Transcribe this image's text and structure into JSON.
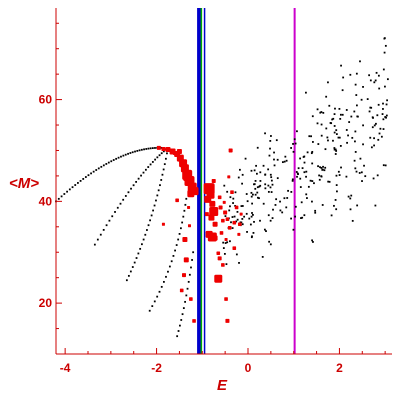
{
  "chart_data": {
    "type": "scatter",
    "title": "",
    "xlabel": "E",
    "ylabel": "<M>",
    "xlim": [
      -4.2,
      3.15
    ],
    "ylim": [
      10,
      78
    ],
    "xticks": [
      -4,
      -2,
      0,
      2
    ],
    "yticks": [
      20,
      40,
      60
    ],
    "grid": false,
    "colors": {
      "axis": "#cc0000",
      "black_points": "#000000",
      "red_points": "#ee0000",
      "blue_line": "#0000cc",
      "green_line": "#00aa00",
      "magenta_line": "#cc00cc"
    },
    "vertical_lines": [
      {
        "x": -1.07,
        "color": "#0000cc",
        "width": 4
      },
      {
        "x": -1.02,
        "color": "#00aa00",
        "width": 1.5
      },
      {
        "x": -0.95,
        "color": "#0000cc",
        "width": 1.5
      },
      {
        "x": 1.02,
        "color": "#cc00cc",
        "width": 2
      }
    ],
    "curves": [
      {
        "x0": -4.2,
        "y0": 40,
        "xp": -2.85,
        "yp": 51,
        "x1": -1.85,
        "y1": 50.5,
        "n": 45
      },
      {
        "x0": -3.35,
        "y0": 31.5,
        "xp": -2.4,
        "yp": 46,
        "x1": -1.75,
        "y1": 50.5,
        "n": 30
      },
      {
        "x0": -2.65,
        "y0": 24.5,
        "xp": -2.05,
        "yp": 36,
        "x1": -1.75,
        "y1": 50.5,
        "n": 28
      },
      {
        "x0": -2.15,
        "y0": 18.5,
        "xp": -1.55,
        "yp": 28,
        "x1": -1.35,
        "y1": 40.5,
        "n": 22
      },
      {
        "x0": -1.55,
        "y0": 13.5,
        "xp": -1.35,
        "yp": 20,
        "x1": -1.2,
        "y1": 30,
        "n": 14
      }
    ],
    "cloud": {
      "n": 330,
      "x_range": [
        -0.55,
        3.1
      ],
      "y_at_x_min": 36,
      "y_at_x_max": 58,
      "spread": 6
    },
    "red_points": [
      {
        "x": -1.95,
        "y": 50.5,
        "s": 2
      },
      {
        "x": -1.85,
        "y": 50.3,
        "s": 2
      },
      {
        "x": -1.75,
        "y": 50.2,
        "s": 2.5
      },
      {
        "x": -1.65,
        "y": 49.8,
        "s": 3
      },
      {
        "x": -1.55,
        "y": 49.3,
        "s": 3
      },
      {
        "x": -1.48,
        "y": 48.5,
        "s": 3.5
      },
      {
        "x": -1.42,
        "y": 47.5,
        "s": 4
      },
      {
        "x": -1.38,
        "y": 46.5,
        "s": 4
      },
      {
        "x": -1.33,
        "y": 45.2,
        "s": 5
      },
      {
        "x": -1.28,
        "y": 44,
        "s": 5
      },
      {
        "x": -1.22,
        "y": 42.8,
        "s": 4.5
      },
      {
        "x": -1.17,
        "y": 42,
        "s": 4
      },
      {
        "x": -1.3,
        "y": 45.6,
        "s": 3
      },
      {
        "x": -1.35,
        "y": 44.6,
        "s": 3
      },
      {
        "x": -1.25,
        "y": 41.5,
        "s": 3.5
      },
      {
        "x": -1.5,
        "y": 49.8,
        "s": 2.5
      },
      {
        "x": -1.6,
        "y": 49.5,
        "s": 2
      },
      {
        "x": -1.45,
        "y": 47.8,
        "s": 2.5
      },
      {
        "x": -0.85,
        "y": 42.5,
        "s": 5.5
      },
      {
        "x": -0.82,
        "y": 41.3,
        "s": 4
      },
      {
        "x": -0.88,
        "y": 40.4,
        "s": 3.5
      },
      {
        "x": -0.78,
        "y": 39.5,
        "s": 3
      },
      {
        "x": -0.75,
        "y": 38,
        "s": 4.5
      },
      {
        "x": -0.8,
        "y": 36.8,
        "s": 3
      },
      {
        "x": -0.72,
        "y": 35.5,
        "s": 2.5
      },
      {
        "x": -0.85,
        "y": 33.5,
        "s": 3.5
      },
      {
        "x": -0.78,
        "y": 33,
        "s": 4.5
      },
      {
        "x": -0.72,
        "y": 32.8,
        "s": 2.5
      },
      {
        "x": -0.9,
        "y": 37.5,
        "s": 2
      },
      {
        "x": -0.6,
        "y": 38.8,
        "s": 2
      },
      {
        "x": -0.5,
        "y": 37.8,
        "s": 2
      },
      {
        "x": -0.45,
        "y": 36.5,
        "s": 1.8
      },
      {
        "x": -0.4,
        "y": 34.8,
        "s": 1.8
      },
      {
        "x": -0.55,
        "y": 36.2,
        "s": 1.8
      },
      {
        "x": -0.3,
        "y": 35.8,
        "s": 1.8
      },
      {
        "x": -0.62,
        "y": 40.8,
        "s": 1.8
      },
      {
        "x": -0.35,
        "y": 41.8,
        "s": 1.8
      },
      {
        "x": -0.25,
        "y": 38.8,
        "s": 1.8
      },
      {
        "x": -0.18,
        "y": 35.5,
        "s": 1.8
      },
      {
        "x": -0.52,
        "y": 39.8,
        "s": 1.5
      },
      {
        "x": -0.42,
        "y": 44.8,
        "s": 1.5
      },
      {
        "x": -0.38,
        "y": 50,
        "s": 2
      },
      {
        "x": -0.3,
        "y": 30.8,
        "s": 1.8
      },
      {
        "x": -0.65,
        "y": 29.8,
        "s": 1.8
      },
      {
        "x": -0.58,
        "y": 33.8,
        "s": 1.8
      },
      {
        "x": -0.48,
        "y": 32.5,
        "s": 1.5
      },
      {
        "x": -0.55,
        "y": 27.5,
        "s": 1.8
      },
      {
        "x": -0.2,
        "y": 33.5,
        "s": 1.5
      },
      {
        "x": -0.15,
        "y": 37.5,
        "s": 1.5
      },
      {
        "x": -1.38,
        "y": 32.5,
        "s": 2.5
      },
      {
        "x": -1.35,
        "y": 28.5,
        "s": 2.5
      },
      {
        "x": -1.4,
        "y": 25.5,
        "s": 2
      },
      {
        "x": -1.45,
        "y": 22.5,
        "s": 1.8
      },
      {
        "x": -1.25,
        "y": 20.8,
        "s": 1.8
      },
      {
        "x": -1.18,
        "y": 16.5,
        "s": 1.8
      },
      {
        "x": -0.65,
        "y": 24.8,
        "s": 4
      },
      {
        "x": -0.62,
        "y": 28.8,
        "s": 2
      },
      {
        "x": -0.48,
        "y": 20.8,
        "s": 1.8
      },
      {
        "x": -0.45,
        "y": 16.5,
        "s": 2
      },
      {
        "x": -1.55,
        "y": 40.2,
        "s": 1.8
      },
      {
        "x": -1.3,
        "y": 38.8,
        "s": 1.5
      },
      {
        "x": -1.28,
        "y": 35.2,
        "s": 1.5
      },
      {
        "x": -0.75,
        "y": 44,
        "s": 2
      },
      {
        "x": -1.85,
        "y": 35.5,
        "s": 1.5
      }
    ]
  }
}
